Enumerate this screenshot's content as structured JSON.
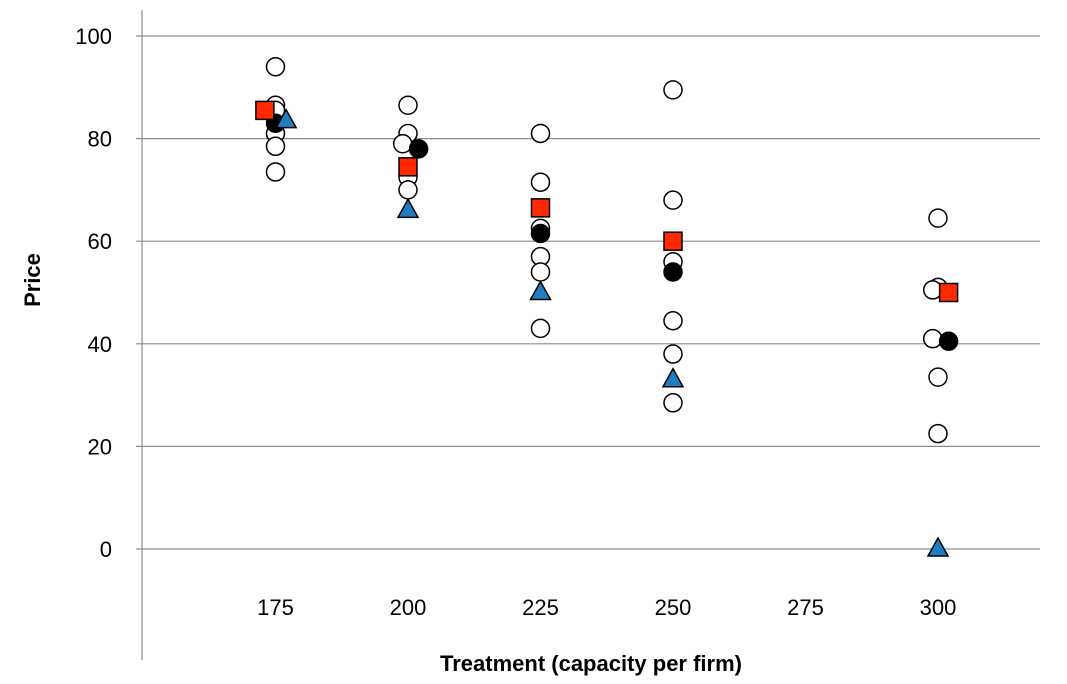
{
  "chart_data": {
    "type": "scatter",
    "title": "",
    "xlabel": "Treatment (capacity per firm)",
    "ylabel": "Price",
    "x_ticks": [
      "175",
      "200",
      "225",
      "250",
      "275",
      "300"
    ],
    "y_ticks": [
      "0",
      "20",
      "40",
      "60",
      "80",
      "100"
    ],
    "xlim": [
      150,
      325
    ],
    "ylim": [
      0,
      100
    ],
    "grid": "horizontal",
    "legend": "none",
    "series": [
      {
        "marker": "open-circle",
        "color": "#ffffff",
        "points": [
          [
            175,
            94
          ],
          [
            175,
            86.5
          ],
          [
            175,
            85.5
          ],
          [
            175,
            81
          ],
          [
            175,
            78.5
          ],
          [
            175,
            73.5
          ],
          [
            200,
            86.5
          ],
          [
            200,
            81
          ],
          [
            199,
            79
          ],
          [
            200,
            72.5
          ],
          [
            200,
            70
          ],
          [
            225,
            81
          ],
          [
            225,
            71.5
          ],
          [
            225,
            62.5
          ],
          [
            225,
            57
          ],
          [
            225,
            54
          ],
          [
            225,
            43
          ],
          [
            250,
            89.5
          ],
          [
            250,
            68
          ],
          [
            250,
            56
          ],
          [
            250,
            44.5
          ],
          [
            250,
            38
          ],
          [
            250,
            28.5
          ],
          [
            300,
            64.5
          ],
          [
            300,
            51
          ],
          [
            299,
            50.5
          ],
          [
            299,
            41
          ],
          [
            300,
            33.5
          ],
          [
            300,
            22.5
          ]
        ]
      },
      {
        "marker": "filled-circle",
        "color": "#000000",
        "points": [
          [
            175,
            83
          ],
          [
            202,
            78
          ],
          [
            225,
            61.5
          ],
          [
            250,
            54
          ],
          [
            302,
            40.5
          ]
        ]
      },
      {
        "marker": "square",
        "color": "#ff2a00",
        "points": [
          [
            173,
            85.5
          ],
          [
            200,
            74.5
          ],
          [
            225,
            66.5
          ],
          [
            250,
            60
          ],
          [
            302,
            50
          ]
        ]
      },
      {
        "marker": "triangle",
        "color": "#1f7ec1",
        "points": [
          [
            177,
            83.5
          ],
          [
            200,
            66
          ],
          [
            225,
            50
          ],
          [
            250,
            33
          ],
          [
            300,
            0
          ]
        ]
      }
    ]
  }
}
